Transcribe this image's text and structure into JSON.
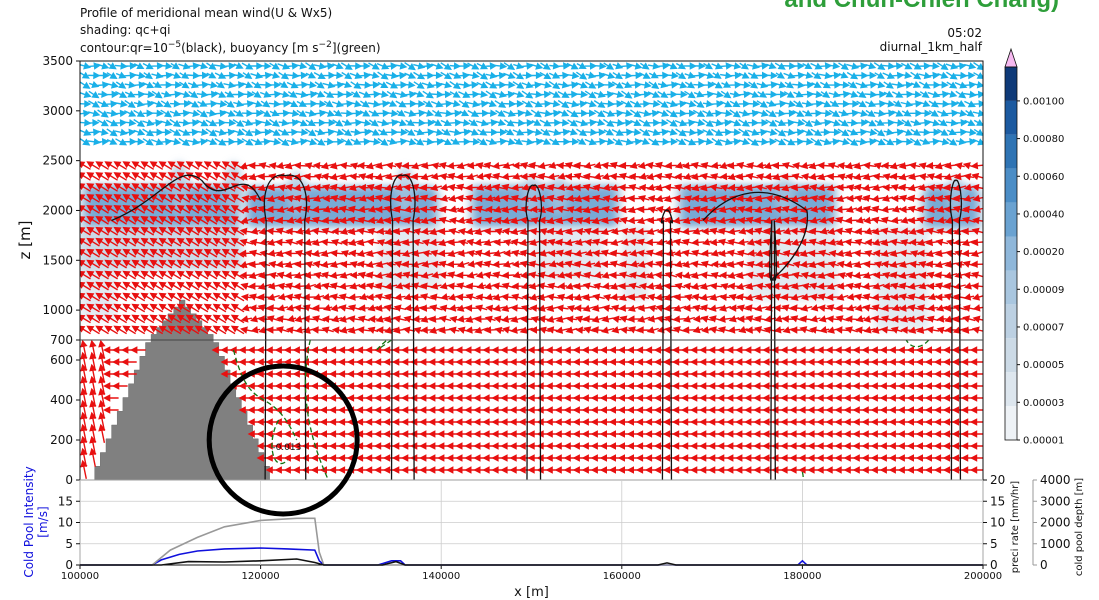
{
  "header": {
    "title": "Profile of meridional mean wind(U & Wx5)",
    "shading": "shading: qc+qi",
    "contour_pre": "contour:qr=10",
    "contour_exp": "−5",
    "contour_mid": "(black), buoyancy [m s",
    "contour_exp2": "−2",
    "contour_post": "](green)",
    "time": "05:02",
    "run_name": "diurnal_1km_half",
    "credit": "and Chun-Chien Chang)"
  },
  "chart_data": [
    {
      "type": "heatmap",
      "panel": "main",
      "xlabel": "",
      "ylabel": "z [m]",
      "xlim": [
        100000,
        200000
      ],
      "y_ticks_upper": [
        700,
        1000,
        1500,
        2000,
        2500,
        3000,
        3500
      ],
      "y_ticks_lower": [
        0,
        200,
        400,
        600,
        700
      ],
      "y_axis_note": "two-segment y axis: 0–700 m stretched, 700–3500 m compressed",
      "cloud_band": {
        "z_base": 1800,
        "z_top": 2300
      },
      "cloud_layers": [
        {
          "x0": 100000,
          "x1": 118000,
          "z0": 1400,
          "z1": 2250
        },
        {
          "x0": 118000,
          "x1": 140000,
          "z0": 1850,
          "z1": 2200
        },
        {
          "x0": 143000,
          "x1": 160000,
          "z0": 1850,
          "z1": 2250
        },
        {
          "x0": 166000,
          "x1": 184000,
          "z0": 1850,
          "z1": 2250
        },
        {
          "x0": 193000,
          "x1": 200000,
          "z0": 1800,
          "z1": 2200
        }
      ],
      "cloud_tops": [
        {
          "x": 111000,
          "z_top": 2450
        },
        {
          "x": 117000,
          "z_top": 2450
        },
        {
          "x": 124000,
          "z_top": 2350
        },
        {
          "x": 136000,
          "z_top": 2400
        },
        {
          "x": 150000,
          "z_top": 2300
        },
        {
          "x": 153000,
          "z_top": 2300
        },
        {
          "x": 178000,
          "z_top": 2300
        },
        {
          "x": 197000,
          "z_top": 2300
        }
      ],
      "qr_contour_columns": [
        {
          "x0": 120500,
          "x1": 125000,
          "z_top": 2350
        },
        {
          "x0": 134500,
          "x1": 137000,
          "z_top": 2350
        },
        {
          "x0": 149500,
          "x1": 151000,
          "z_top": 2250
        },
        {
          "x0": 164500,
          "x1": 165500,
          "z_top": 2000
        },
        {
          "x0": 176500,
          "x1": 177000,
          "z_top": 1300
        },
        {
          "x0": 196500,
          "x1": 197500,
          "z_top": 2300
        }
      ],
      "buoyancy_label": "-0.013",
      "terrain": {
        "x0": 101000,
        "peak_x": 111000,
        "peak_z": 1100,
        "x1": 121000
      },
      "wind": {
        "upper_easterly_z": [
          2600,
          3500
        ],
        "upper_color": "#1ab0e8",
        "lower_color": "#e81010",
        "low_level": "westward flow below 700 m"
      },
      "annotation": {
        "shape": "circle",
        "x": 122500,
        "z": 200
      }
    },
    {
      "type": "line",
      "panel": "lower",
      "xlabel": "x [m]",
      "x_ticks": [
        100000,
        120000,
        140000,
        160000,
        180000,
        200000
      ],
      "left_axis": {
        "label_line1": "Cold Pool Intensity",
        "label_line2": "[m/s]",
        "ticks": [
          0,
          5,
          10,
          15,
          20
        ],
        "color": "#1010dd"
      },
      "right_axis_1": {
        "label": "preci rate [mm/hr]",
        "ticks": [
          0,
          5,
          10,
          15,
          20
        ]
      },
      "right_axis_2": {
        "label": "cold pool depth [m]",
        "ticks": [
          0,
          1000,
          2000,
          3000,
          4000
        ],
        "color": "#999999"
      },
      "series": [
        {
          "name": "",
          "axis": "left",
          "color": "#1010dd",
          "x": [
            100000,
            108000,
            109000,
            111000,
            113000,
            116000,
            120000,
            123000,
            126000,
            126500,
            127000,
            133000,
            134500,
            135500,
            136000,
            179500,
            180000,
            180500,
            200000
          ],
          "y": [
            0,
            0,
            1.2,
            2.5,
            3.3,
            3.8,
            4.0,
            3.8,
            3.5,
            1.0,
            0,
            0,
            1.0,
            1.0,
            0,
            0,
            1.0,
            0,
            0
          ]
        },
        {
          "name": "",
          "axis": "right_2",
          "color": "#999999",
          "x": [
            100000,
            108000,
            110000,
            113000,
            116000,
            120000,
            124000,
            126000,
            126500,
            127000,
            200000
          ],
          "y": [
            0,
            0,
            700,
            1300,
            1800,
            2100,
            2200,
            2200,
            600,
            0,
            0
          ]
        },
        {
          "name": "",
          "axis": "right_1",
          "color": "#111111",
          "x": [
            100000,
            109000,
            112000,
            116000,
            120000,
            124000,
            126000,
            127000,
            133500,
            135000,
            136000,
            164000,
            165000,
            166000,
            200000
          ],
          "y": [
            0,
            0,
            0.8,
            0.7,
            1.0,
            1.4,
            0.6,
            0,
            0,
            0.8,
            0,
            0,
            0.5,
            0,
            0
          ]
        }
      ]
    }
  ],
  "colorbar": {
    "levels": [
      "0.00001",
      "0.00003",
      "0.00005",
      "0.00007",
      "0.00009",
      "0.00020",
      "0.00040",
      "0.00060",
      "0.00080",
      "0.00100"
    ],
    "colors": [
      "#eef2f6",
      "#dde6ee",
      "#ccdae6",
      "#bcd0e2",
      "#a9c6df",
      "#8fb7da",
      "#6aa2d1",
      "#4b8dc6",
      "#2f74b4",
      "#1c5aa0",
      "#0e3a78"
    ],
    "extend_color": "#f6b9f0"
  }
}
